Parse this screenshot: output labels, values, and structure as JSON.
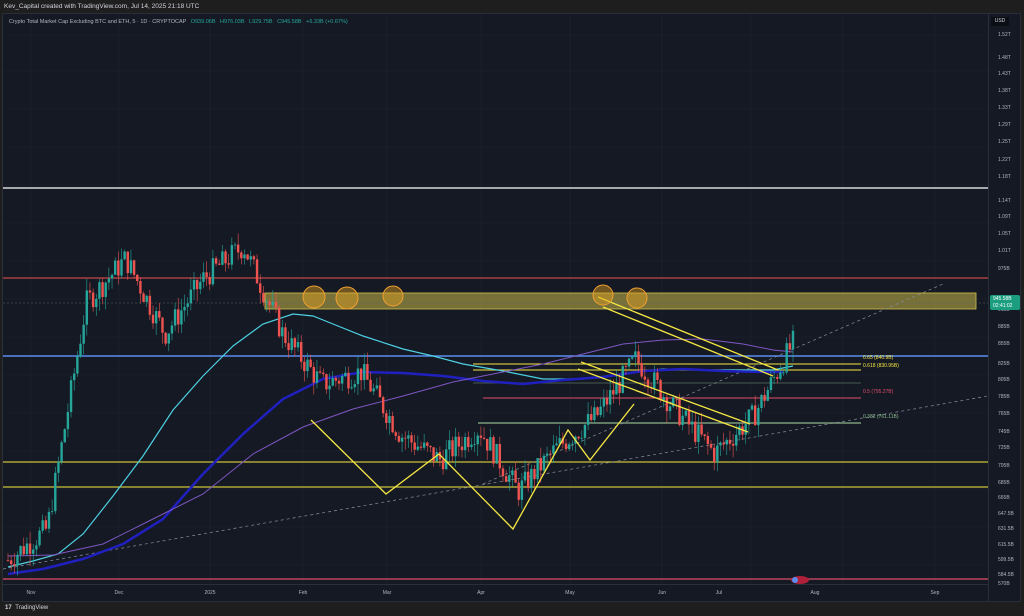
{
  "header": {
    "attribution": "Kev_Capital created with TradingView.com, Jul 14, 2025 21:18 UTC"
  },
  "legend": {
    "symbol": "Crypto Total Market Cap Excluding BTC and ETH, 5 · 1D · CRYPTOCAP",
    "open": "O939.06B",
    "high": "H976.03B",
    "low": "L929.75B",
    "close": "C945.58B",
    "change": "+6.33B (+0.67%)"
  },
  "axis": {
    "currency": "USD",
    "current_price": "945.58B",
    "countdown": "02:41:02"
  },
  "colors": {
    "background": "#151924",
    "bullish": "#26a69a",
    "bearish": "#ef5350",
    "ema_cyan": "#4dd0e1",
    "ma_blue": "#1a1ab8",
    "ma_purple": "#7e57c2",
    "drawing_yellow": "#f5e642",
    "resistance_zone": "#c9b84a",
    "fib_blue": "#5b8def",
    "fib_red": "#e04e6a",
    "fib_green": "#7a9a7a",
    "price_badge": "#1a9e7f"
  },
  "fib_labels": [
    {
      "text": "0.65 (840.9B)",
      "color": "#f5e642"
    },
    {
      "text": "0.618 (830.95B)",
      "color": "#f5e642"
    },
    {
      "text": "0.5 (795.27B)",
      "color": "#e04e6a"
    },
    {
      "text": "0.382 (761.11B)",
      "color": "#8fbf8f"
    }
  ],
  "footer": {
    "brand": "TradingView"
  },
  "chart_data": {
    "type": "candlestick",
    "title": "Crypto Total Market Cap Excluding BTC and ETH, 5 · 1D · CRYPTOCAP",
    "xlabel": "",
    "ylabel": "USD",
    "x_ticks": [
      "Nov",
      "Dec",
      "2025",
      "Feb",
      "Mar",
      "Apr",
      "May",
      "Jun",
      "Jul",
      "Aug",
      "Sep"
    ],
    "y_ticks": [
      "1.52T",
      "1.48T",
      "1.43T",
      "1.38T",
      "1.33T",
      "1.29T",
      "1.25T",
      "1.22T",
      "1.18T",
      "1.14T",
      "1.09T",
      "1.05T",
      "1.01T",
      "975B",
      "915B",
      "885B",
      "855B",
      "825B",
      "805B",
      "785B",
      "765B",
      "745B",
      "725B",
      "705B",
      "685B",
      "665B",
      "647.5B",
      "631.5B",
      "615.5B",
      "599.5B",
      "584.5B",
      "570B"
    ],
    "ylim": [
      570,
      1520
    ],
    "ohlc_last": {
      "open": 939.06,
      "high": 976.03,
      "low": 929.75,
      "close": 945.58,
      "change": 6.33,
      "change_pct": 0.67
    },
    "approx_close_path": [
      {
        "x": "Nov",
        "value": 600
      },
      {
        "x": "late Nov",
        "value": 650
      },
      {
        "x": "Dec",
        "value": 1010
      },
      {
        "x": "mid Dec",
        "value": 1080
      },
      {
        "x": "late Dec",
        "value": 960
      },
      {
        "x": "2025",
        "value": 1050
      },
      {
        "x": "mid Jan",
        "value": 1100
      },
      {
        "x": "late Jan",
        "value": 960
      },
      {
        "x": "Feb",
        "value": 880
      },
      {
        "x": "mid Feb",
        "value": 900
      },
      {
        "x": "Mar",
        "value": 800
      },
      {
        "x": "mid Mar",
        "value": 760
      },
      {
        "x": "late Mar",
        "value": 810
      },
      {
        "x": "Apr",
        "value": 710
      },
      {
        "x": "mid Apr",
        "value": 780
      },
      {
        "x": "May",
        "value": 830
      },
      {
        "x": "mid May",
        "value": 920
      },
      {
        "x": "Jun",
        "value": 840
      },
      {
        "x": "late Jun",
        "value": 770
      },
      {
        "x": "Jul",
        "value": 830
      },
      {
        "x": "mid Jul",
        "value": 945.58
      }
    ],
    "horizontal_levels": [
      {
        "value": 1180,
        "color": "#ffffff",
        "label": "top"
      },
      {
        "value": 985,
        "color": "#ef5350"
      },
      {
        "value": 855,
        "color": "#5b8def"
      },
      {
        "value": 840.9,
        "color": "#f5e642",
        "label": "0.65"
      },
      {
        "value": 830.95,
        "color": "#f5e642",
        "label": "0.618"
      },
      {
        "value": 795.27,
        "color": "#e04e6a",
        "label": "0.5"
      },
      {
        "value": 761.11,
        "color": "#7a9a7a",
        "label": "0.382"
      },
      {
        "value": 708,
        "color": "#f5e642"
      },
      {
        "value": 680,
        "color": "#f5e642"
      },
      {
        "value": 572,
        "color": "#e04e6a"
      }
    ],
    "zones": [
      {
        "from": 935,
        "to": 965,
        "color": "#c9b84a",
        "label": "resistance"
      }
    ],
    "indicators": [
      {
        "name": "EMA (cyan)",
        "color": "#4dd0e1"
      },
      {
        "name": "MA (blue)",
        "color": "#1a1ab8"
      },
      {
        "name": "MA (purple)",
        "color": "#7e57c2"
      }
    ],
    "grid": true,
    "legend_position": "top-left"
  }
}
